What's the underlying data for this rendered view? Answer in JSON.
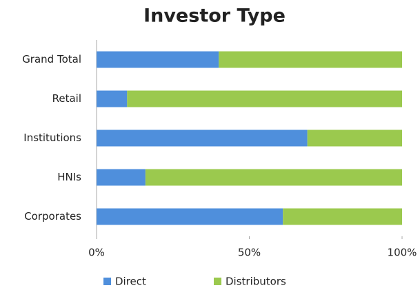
{
  "chart_data": {
    "type": "stacked_barh",
    "title": "Investor Type",
    "categories": [
      "Grand Total",
      "Retail",
      "Institutions",
      "HNIs",
      "Corporates"
    ],
    "series": [
      {
        "name": "Direct",
        "color": "#4f8fdc",
        "values": [
          40,
          10,
          69,
          16,
          61
        ]
      },
      {
        "name": "Distributors",
        "color": "#9bc94e",
        "values": [
          60,
          90,
          31,
          84,
          39
        ]
      }
    ],
    "xlim": [
      0,
      100
    ],
    "xticks": [
      {
        "value": 0,
        "label": "0%"
      },
      {
        "value": 50,
        "label": "50%"
      },
      {
        "value": 100,
        "label": "100%"
      }
    ],
    "legend": "bottom"
  }
}
